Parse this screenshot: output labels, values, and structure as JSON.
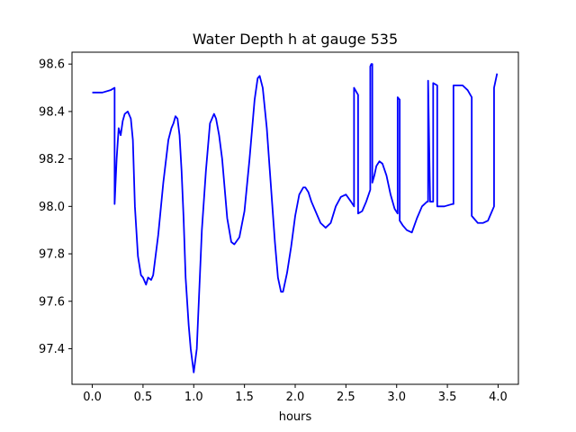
{
  "chart_data": {
    "type": "line",
    "title": "Water Depth h at gauge 535",
    "xlabel": "hours",
    "ylabel": "",
    "xlim": [
      -0.2,
      4.2
    ],
    "ylim": [
      97.25,
      98.65
    ],
    "xticks": [
      0.0,
      0.5,
      1.0,
      1.5,
      2.0,
      2.5,
      3.0,
      3.5,
      4.0
    ],
    "xtick_labels": [
      "0.0",
      "0.5",
      "1.0",
      "1.5",
      "2.0",
      "2.5",
      "3.0",
      "3.5",
      "4.0"
    ],
    "yticks": [
      97.4,
      97.6,
      97.8,
      98.0,
      98.2,
      98.4,
      98.6
    ],
    "ytick_labels": [
      "97.4",
      "97.6",
      "97.8",
      "98.0",
      "98.2",
      "98.4",
      "98.6"
    ],
    "grid": false,
    "series": [
      {
        "color": "#0000ff",
        "x": [
          0.0,
          0.1,
          0.18,
          0.22,
          0.22,
          0.24,
          0.26,
          0.28,
          0.3,
          0.32,
          0.35,
          0.38,
          0.4,
          0.42,
          0.45,
          0.48,
          0.5,
          0.53,
          0.55,
          0.58,
          0.6,
          0.65,
          0.7,
          0.75,
          0.78,
          0.8,
          0.82,
          0.84,
          0.86,
          0.88,
          0.9,
          0.92,
          0.95,
          0.97,
          1.0,
          1.03,
          1.05,
          1.08,
          1.12,
          1.16,
          1.2,
          1.22,
          1.25,
          1.28,
          1.3,
          1.33,
          1.37,
          1.4,
          1.45,
          1.5,
          1.55,
          1.6,
          1.63,
          1.65,
          1.68,
          1.72,
          1.75,
          1.8,
          1.83,
          1.86,
          1.88,
          1.92,
          1.96,
          2.0,
          2.04,
          2.08,
          2.1,
          2.13,
          2.16,
          2.2,
          2.25,
          2.3,
          2.35,
          2.4,
          2.45,
          2.5,
          2.55,
          2.58,
          2.58,
          2.62,
          2.62,
          2.66,
          2.7,
          2.74,
          2.74,
          2.75,
          2.76,
          2.76,
          2.78,
          2.8,
          2.83,
          2.86,
          2.9,
          2.94,
          2.98,
          3.01,
          3.01,
          3.03,
          3.03,
          3.06,
          3.1,
          3.15,
          3.2,
          3.25,
          3.3,
          3.31,
          3.31,
          3.33,
          3.35,
          3.36,
          3.36,
          3.4,
          3.4,
          3.42,
          3.47,
          3.55,
          3.56,
          3.56,
          3.6,
          3.65,
          3.7,
          3.74,
          3.74,
          3.78,
          3.8,
          3.85,
          3.9,
          3.93,
          3.96,
          3.96,
          3.99
        ],
        "y": [
          98.48,
          98.48,
          98.49,
          98.5,
          98.01,
          98.2,
          98.33,
          98.3,
          98.36,
          98.39,
          98.4,
          98.37,
          98.28,
          98.0,
          97.79,
          97.71,
          97.7,
          97.67,
          97.7,
          97.69,
          97.71,
          97.88,
          98.1,
          98.28,
          98.33,
          98.35,
          98.38,
          98.37,
          98.3,
          98.15,
          97.95,
          97.7,
          97.5,
          97.4,
          97.3,
          97.4,
          97.6,
          97.9,
          98.15,
          98.35,
          98.39,
          98.37,
          98.3,
          98.2,
          98.1,
          97.95,
          97.85,
          97.84,
          97.87,
          97.98,
          98.2,
          98.45,
          98.54,
          98.55,
          98.5,
          98.33,
          98.15,
          97.85,
          97.7,
          97.64,
          97.64,
          97.72,
          97.83,
          97.96,
          98.05,
          98.08,
          98.08,
          98.06,
          98.02,
          97.98,
          97.93,
          97.91,
          97.93,
          98.0,
          98.04,
          98.05,
          98.02,
          98.0,
          98.5,
          98.47,
          97.97,
          97.98,
          98.02,
          98.07,
          98.59,
          98.6,
          98.6,
          98.1,
          98.13,
          98.17,
          98.19,
          98.18,
          98.13,
          98.05,
          97.99,
          97.97,
          98.46,
          98.45,
          97.94,
          97.92,
          97.9,
          97.89,
          97.95,
          98.0,
          98.02,
          98.02,
          98.53,
          98.02,
          98.02,
          98.02,
          98.52,
          98.51,
          98.0,
          98.0,
          98.0,
          98.01,
          98.01,
          98.51,
          98.51,
          98.51,
          98.49,
          98.46,
          97.96,
          97.94,
          97.93,
          97.93,
          97.94,
          97.97,
          98.0,
          98.5,
          98.56
        ]
      }
    ]
  }
}
